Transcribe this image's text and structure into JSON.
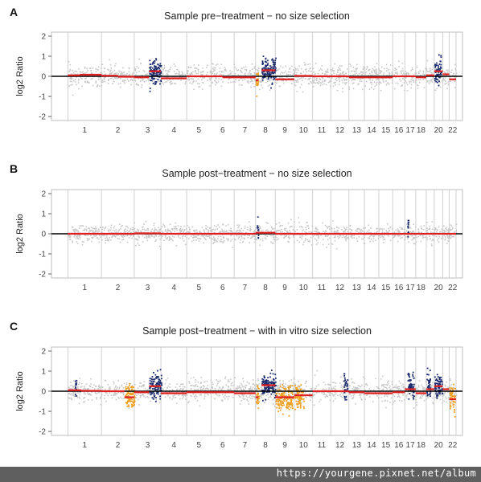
{
  "chart_data": [
    {
      "type": "scatter",
      "panel": "A",
      "title": "Sample pre−treatment − no size selection",
      "ylabel": "log2 Ratio",
      "ylim": [
        -2.2,
        2.2
      ],
      "yticks": [
        2,
        1,
        0,
        -1,
        -2
      ],
      "chromosomes": [
        "1",
        "2",
        "3",
        "4",
        "5",
        "6",
        "7",
        "8",
        "9",
        "10",
        "11",
        "12",
        "13",
        "14",
        "15",
        "16",
        "17",
        "18",
        "19",
        "20",
        "21",
        "22"
      ],
      "chromosome_label_shown": [
        "1",
        "2",
        "3",
        "4",
        "5",
        "6",
        "7",
        "8",
        "9",
        "10",
        "11",
        "12",
        "13",
        "14",
        "15",
        "16",
        "17",
        "18",
        "",
        "20",
        "",
        "22"
      ],
      "series": [
        {
          "name": "",
          "role": "background",
          "color": "#c8c8c8",
          "noise_sd": 0.3
        },
        {
          "name": "",
          "role": "gain",
          "color": "#1a2a6c",
          "regions": [
            {
              "chr": "3",
              "from": 0.55,
              "to": 1.0,
              "mean": 0.25
            },
            {
              "chr": "8",
              "from": 0.3,
              "to": 1.0,
              "mean": 0.3
            },
            {
              "chr": "20",
              "from": 0.0,
              "to": 0.8,
              "mean": 0.25
            }
          ]
        },
        {
          "name": "",
          "role": "loss",
          "color": "#f0a020",
          "regions": [
            {
              "chr": "8",
              "from": 0.0,
              "to": 0.12,
              "mean": -0.25
            }
          ]
        },
        {
          "name": "",
          "role": "segment",
          "color": "#e02020",
          "segments": [
            {
              "chr": "1",
              "from": 0,
              "to": 0.35,
              "value": 0.05
            },
            {
              "chr": "1",
              "from": 0.35,
              "to": 1,
              "value": 0.08
            },
            {
              "chr": "2",
              "from": 0,
              "to": 0.5,
              "value": 0.03
            },
            {
              "chr": "2",
              "from": 0.5,
              "to": 1,
              "value": -0.02
            },
            {
              "chr": "3",
              "from": 0,
              "to": 0.55,
              "value": -0.05
            },
            {
              "chr": "3",
              "from": 0.55,
              "to": 1,
              "value": 0.25
            },
            {
              "chr": "4",
              "from": 0,
              "to": 1,
              "value": -0.1
            },
            {
              "chr": "5",
              "from": 0,
              "to": 1,
              "value": 0.0
            },
            {
              "chr": "6",
              "from": 0,
              "to": 0.5,
              "value": 0.0
            },
            {
              "chr": "6",
              "from": 0.5,
              "to": 1,
              "value": -0.05
            },
            {
              "chr": "7",
              "from": 0,
              "to": 1,
              "value": -0.05
            },
            {
              "chr": "8",
              "from": 0,
              "to": 0.15,
              "value": -0.2
            },
            {
              "chr": "8",
              "from": 0.3,
              "to": 1,
              "value": 0.3
            },
            {
              "chr": "9",
              "from": 0,
              "to": 1,
              "value": -0.15
            },
            {
              "chr": "10",
              "from": 0,
              "to": 1,
              "value": 0.02
            },
            {
              "chr": "11",
              "from": 0,
              "to": 1,
              "value": 0.0
            },
            {
              "chr": "12",
              "from": 0,
              "to": 1,
              "value": 0.0
            },
            {
              "chr": "13",
              "from": 0,
              "to": 1,
              "value": -0.05
            },
            {
              "chr": "14",
              "from": 0,
              "to": 1,
              "value": -0.05
            },
            {
              "chr": "15",
              "from": 0,
              "to": 1,
              "value": -0.05
            },
            {
              "chr": "16",
              "from": 0,
              "to": 1,
              "value": 0.0
            },
            {
              "chr": "17",
              "from": 0,
              "to": 1,
              "value": 0.0
            },
            {
              "chr": "18",
              "from": 0,
              "to": 1,
              "value": -0.05
            },
            {
              "chr": "19",
              "from": 0,
              "to": 1,
              "value": 0.05
            },
            {
              "chr": "20",
              "from": 0,
              "to": 1,
              "value": 0.25
            },
            {
              "chr": "21",
              "from": 0,
              "to": 1,
              "value": 0.1
            },
            {
              "chr": "22",
              "from": 0,
              "to": 1,
              "value": -0.15
            }
          ]
        }
      ],
      "grid": true,
      "zero_line": true
    },
    {
      "type": "scatter",
      "panel": "B",
      "title": "Sample post−treatment − no size selection",
      "ylabel": "log2 Ratio",
      "ylim": [
        -2.2,
        2.2
      ],
      "yticks": [
        2,
        1,
        0,
        -1,
        -2
      ],
      "chromosomes": [
        "1",
        "2",
        "3",
        "4",
        "5",
        "6",
        "7",
        "8",
        "9",
        "10",
        "11",
        "12",
        "13",
        "14",
        "15",
        "16",
        "17",
        "18",
        "19",
        "20",
        "21",
        "22"
      ],
      "chromosome_label_shown": [
        "1",
        "2",
        "3",
        "4",
        "5",
        "6",
        "7",
        "8",
        "9",
        "10",
        "11",
        "12",
        "13",
        "14",
        "15",
        "16",
        "17",
        "18",
        "",
        "20",
        "",
        "22"
      ],
      "series": [
        {
          "name": "",
          "role": "background",
          "color": "#c8c8c8",
          "noise_sd": 0.25
        },
        {
          "name": "",
          "role": "gain",
          "color": "#1a2a6c",
          "regions": [
            {
              "chr": "8",
              "from": 0.05,
              "to": 0.12,
              "mean": 0.2
            },
            {
              "chr": "17",
              "from": 0.2,
              "to": 0.3,
              "mean": 0.3
            }
          ]
        },
        {
          "name": "",
          "role": "segment",
          "color": "#e02020",
          "segments": [
            {
              "chr": "1",
              "from": 0,
              "to": 1,
              "value": 0.0
            },
            {
              "chr": "2",
              "from": 0,
              "to": 1,
              "value": 0.0
            },
            {
              "chr": "3",
              "from": 0,
              "to": 1,
              "value": 0.02
            },
            {
              "chr": "4",
              "from": 0,
              "to": 1,
              "value": 0.0
            },
            {
              "chr": "5",
              "from": 0,
              "to": 1,
              "value": 0.0
            },
            {
              "chr": "6",
              "from": 0,
              "to": 1,
              "value": 0.0
            },
            {
              "chr": "7",
              "from": 0,
              "to": 1,
              "value": 0.0
            },
            {
              "chr": "8",
              "from": 0,
              "to": 1,
              "value": 0.05
            },
            {
              "chr": "9",
              "from": 0,
              "to": 1,
              "value": 0.0
            },
            {
              "chr": "10",
              "from": 0,
              "to": 1,
              "value": 0.0
            },
            {
              "chr": "11",
              "from": 0,
              "to": 1,
              "value": 0.0
            },
            {
              "chr": "12",
              "from": 0,
              "to": 1,
              "value": 0.0
            },
            {
              "chr": "13",
              "from": 0,
              "to": 1,
              "value": 0.0
            },
            {
              "chr": "14",
              "from": 0,
              "to": 1,
              "value": 0.0
            },
            {
              "chr": "15",
              "from": 0,
              "to": 1,
              "value": 0.0
            },
            {
              "chr": "16",
              "from": 0,
              "to": 1,
              "value": 0.0
            },
            {
              "chr": "17",
              "from": 0,
              "to": 1,
              "value": 0.0
            },
            {
              "chr": "18",
              "from": 0,
              "to": 1,
              "value": 0.0
            },
            {
              "chr": "19",
              "from": 0,
              "to": 1,
              "value": 0.0
            },
            {
              "chr": "20",
              "from": 0,
              "to": 1,
              "value": 0.0
            },
            {
              "chr": "21",
              "from": 0,
              "to": 1,
              "value": 0.0
            },
            {
              "chr": "22",
              "from": 0,
              "to": 1,
              "value": 0.0
            }
          ]
        }
      ],
      "grid": true,
      "zero_line": true
    },
    {
      "type": "scatter",
      "panel": "C",
      "title": "Sample post−treatment − with in vitro size selection",
      "ylabel": "log2 Ratio",
      "ylim": [
        -2.2,
        2.2
      ],
      "yticks": [
        2,
        1,
        0,
        -1,
        -2
      ],
      "chromosomes": [
        "1",
        "2",
        "3",
        "4",
        "5",
        "6",
        "7",
        "8",
        "9",
        "10",
        "11",
        "12",
        "13",
        "14",
        "15",
        "16",
        "17",
        "18",
        "19",
        "20",
        "21",
        "22"
      ],
      "chromosome_label_shown": [
        "1",
        "2",
        "3",
        "4",
        "5",
        "6",
        "7",
        "8",
        "9",
        "10",
        "11",
        "12",
        "13",
        "14",
        "15",
        "16",
        "17",
        "18",
        "",
        "20",
        "",
        "22"
      ],
      "series": [
        {
          "name": "",
          "role": "background",
          "color": "#c8c8c8",
          "noise_sd": 0.3
        },
        {
          "name": "",
          "role": "gain",
          "color": "#1a2a6c",
          "regions": [
            {
              "chr": "1",
              "from": 0.2,
              "to": 0.24,
              "mean": 0.2
            },
            {
              "chr": "3",
              "from": 0.55,
              "to": 1.0,
              "mean": 0.25
            },
            {
              "chr": "8",
              "from": 0.3,
              "to": 1.0,
              "mean": 0.3
            },
            {
              "chr": "12",
              "from": 0.7,
              "to": 0.9,
              "mean": 0.2
            },
            {
              "chr": "17",
              "from": 0.2,
              "to": 0.8,
              "mean": 0.3
            },
            {
              "chr": "19",
              "from": 0.0,
              "to": 0.5,
              "mean": 0.3
            },
            {
              "chr": "20",
              "from": 0.0,
              "to": 0.9,
              "mean": 0.25
            }
          ]
        },
        {
          "name": "",
          "role": "loss",
          "color": "#f0a020",
          "regions": [
            {
              "chr": "2",
              "from": 0.7,
              "to": 1.0,
              "mean": -0.3
            },
            {
              "chr": "8",
              "from": 0.0,
              "to": 0.15,
              "mean": -0.3
            },
            {
              "chr": "9",
              "from": 0.0,
              "to": 0.9,
              "mean": -0.35
            },
            {
              "chr": "10",
              "from": 0.0,
              "to": 0.5,
              "mean": -0.3
            },
            {
              "chr": "22",
              "from": 0.0,
              "to": 0.8,
              "mean": -0.4
            }
          ]
        },
        {
          "name": "",
          "role": "segment",
          "color": "#e02020",
          "segments": [
            {
              "chr": "1",
              "from": 0,
              "to": 0.4,
              "value": 0.05
            },
            {
              "chr": "1",
              "from": 0.4,
              "to": 1,
              "value": 0.02
            },
            {
              "chr": "2",
              "from": 0,
              "to": 0.7,
              "value": 0.0
            },
            {
              "chr": "2",
              "from": 0.7,
              "to": 1,
              "value": -0.3
            },
            {
              "chr": "3",
              "from": 0,
              "to": 0.55,
              "value": -0.05
            },
            {
              "chr": "3",
              "from": 0.55,
              "to": 1,
              "value": 0.25
            },
            {
              "chr": "4",
              "from": 0,
              "to": 1,
              "value": -0.1
            },
            {
              "chr": "5",
              "from": 0,
              "to": 1,
              "value": -0.05
            },
            {
              "chr": "6",
              "from": 0,
              "to": 1,
              "value": -0.05
            },
            {
              "chr": "7",
              "from": 0,
              "to": 1,
              "value": -0.1
            },
            {
              "chr": "8",
              "from": 0,
              "to": 0.15,
              "value": -0.3
            },
            {
              "chr": "8",
              "from": 0.3,
              "to": 1,
              "value": 0.3
            },
            {
              "chr": "9",
              "from": 0,
              "to": 1,
              "value": -0.3
            },
            {
              "chr": "10",
              "from": 0,
              "to": 1,
              "value": -0.2
            },
            {
              "chr": "11",
              "from": 0,
              "to": 1,
              "value": 0.0
            },
            {
              "chr": "12",
              "from": 0,
              "to": 1,
              "value": 0.0
            },
            {
              "chr": "13",
              "from": 0,
              "to": 1,
              "value": -0.05
            },
            {
              "chr": "14",
              "from": 0,
              "to": 1,
              "value": -0.1
            },
            {
              "chr": "15",
              "from": 0,
              "to": 1,
              "value": -0.1
            },
            {
              "chr": "16",
              "from": 0,
              "to": 1,
              "value": -0.05
            },
            {
              "chr": "17",
              "from": 0,
              "to": 1,
              "value": 0.1
            },
            {
              "chr": "18",
              "from": 0,
              "to": 1,
              "value": -0.1
            },
            {
              "chr": "19",
              "from": 0,
              "to": 1,
              "value": 0.1
            },
            {
              "chr": "20",
              "from": 0,
              "to": 1,
              "value": 0.25
            },
            {
              "chr": "21",
              "from": 0,
              "to": 1,
              "value": 0.1
            },
            {
              "chr": "22",
              "from": 0,
              "to": 1,
              "value": -0.4
            }
          ]
        }
      ],
      "grid": true,
      "zero_line": true
    }
  ],
  "footer": {
    "watermark_url": "https://yourgene.pixnet.net/album",
    "background": "#5f5f5f"
  }
}
